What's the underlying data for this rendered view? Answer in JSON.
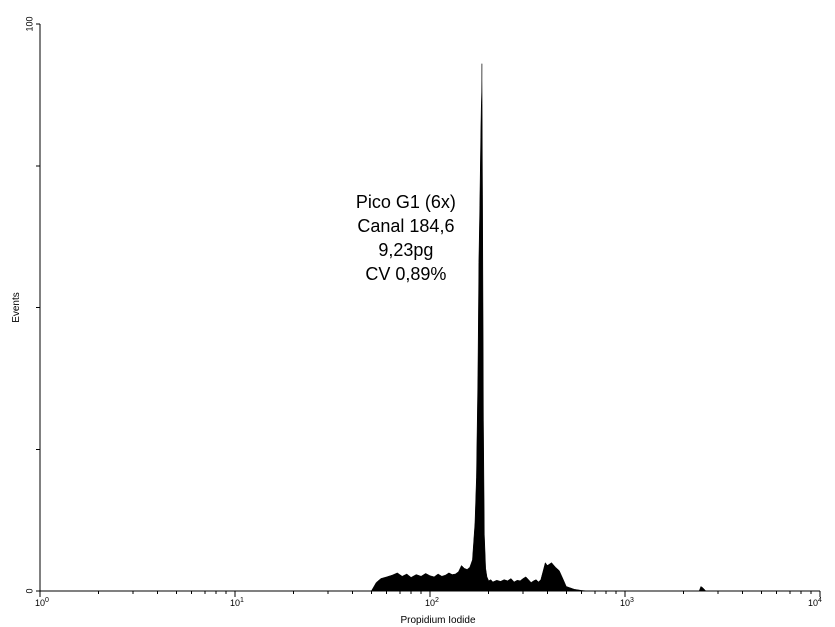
{
  "chart_data": {
    "type": "area",
    "xlabel": "Propidium Iodide",
    "ylabel": "Events",
    "x_scale": "log",
    "xlim": [
      1,
      10000
    ],
    "ylim": [
      0,
      100
    ],
    "x_ticks": [
      {
        "value": 1,
        "base": "10",
        "exp": "0"
      },
      {
        "value": 10,
        "base": "10",
        "exp": "1"
      },
      {
        "value": 100,
        "base": "10",
        "exp": "2"
      },
      {
        "value": 1000,
        "base": "10",
        "exp": "3"
      },
      {
        "value": 10000,
        "base": "10",
        "exp": "4"
      }
    ],
    "y_tick_labels": [
      {
        "value": 0,
        "label": "0"
      },
      {
        "value": 100,
        "label": "100"
      }
    ],
    "y_minor_ticks": [
      25,
      50,
      75
    ],
    "annotation": [
      "Pico G1 (6x)",
      "Canal 184,6",
      "9,23pg",
      "CV 0,89%"
    ],
    "fill_color": "#000000",
    "series": [
      {
        "x": [
          50,
          53,
          56,
          60,
          64,
          68,
          72,
          76,
          80,
          85,
          90,
          95,
          100,
          105,
          110,
          115,
          120,
          125,
          130,
          135,
          140,
          145,
          150,
          155,
          160,
          165,
          170,
          173,
          176,
          178,
          180,
          182,
          183,
          184,
          184.6,
          185,
          186,
          187,
          188,
          190,
          193,
          196,
          200,
          205,
          210,
          220,
          230,
          240,
          250,
          260,
          270,
          280,
          290,
          300,
          310,
          320,
          330,
          340,
          350,
          360,
          370,
          380,
          390,
          400,
          420,
          440,
          460,
          480,
          500,
          550,
          600,
          650,
          700,
          1000,
          1500,
          2000,
          2400,
          2450,
          2500,
          2600,
          3000,
          5000,
          10000
        ],
        "y": [
          0,
          1.5,
          2.2,
          2.5,
          2.8,
          3.2,
          2.6,
          3.0,
          2.4,
          2.9,
          2.6,
          3.1,
          2.7,
          2.5,
          3.0,
          2.6,
          2.8,
          3.2,
          2.9,
          3.0,
          3.4,
          4.5,
          4.0,
          3.8,
          4.2,
          5.5,
          12,
          20,
          38,
          58,
          68,
          80,
          85,
          88,
          93,
          86,
          70,
          50,
          30,
          10,
          4,
          2.5,
          1.8,
          2.0,
          1.6,
          1.9,
          1.7,
          2.0,
          1.8,
          2.2,
          1.6,
          1.9,
          1.8,
          2.2,
          2.5,
          2.0,
          1.5,
          1.8,
          2.0,
          1.6,
          2.0,
          3.5,
          5.0,
          4.5,
          5.0,
          4.2,
          3.6,
          2.2,
          0.8,
          0.3,
          0.1,
          0,
          0,
          0,
          0,
          0,
          0,
          0.8,
          0.6,
          0,
          0,
          0,
          0
        ]
      }
    ]
  }
}
